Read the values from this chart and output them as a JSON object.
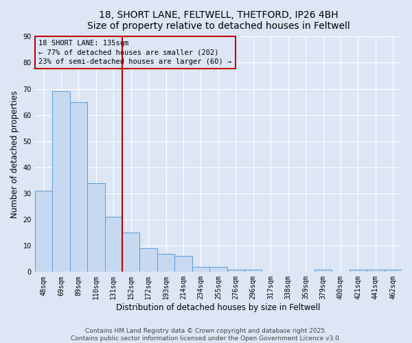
{
  "title_line1": "18, SHORT LANE, FELTWELL, THETFORD, IP26 4BH",
  "title_line2": "Size of property relative to detached houses in Feltwell",
  "xlabel": "Distribution of detached houses by size in Feltwell",
  "ylabel": "Number of detached properties",
  "categories": [
    "48sqm",
    "69sqm",
    "89sqm",
    "110sqm",
    "131sqm",
    "152sqm",
    "172sqm",
    "193sqm",
    "214sqm",
    "234sqm",
    "255sqm",
    "276sqm",
    "296sqm",
    "317sqm",
    "338sqm",
    "359sqm",
    "379sqm",
    "400sqm",
    "421sqm",
    "441sqm",
    "462sqm"
  ],
  "values": [
    31,
    69,
    65,
    34,
    21,
    15,
    9,
    7,
    6,
    2,
    2,
    1,
    1,
    0,
    0,
    0,
    1,
    0,
    1,
    1,
    1
  ],
  "bar_color": "#c6d9f1",
  "bar_edge_color": "#5b9bd5",
  "ref_line_x": 4.5,
  "ref_line_color": "#c00000",
  "ylim": [
    0,
    90
  ],
  "yticks": [
    0,
    10,
    20,
    30,
    40,
    50,
    60,
    70,
    80,
    90
  ],
  "annotation_box_text": "18 SHORT LANE: 135sqm\n← 77% of detached houses are smaller (202)\n23% of semi-detached houses are larger (60) →",
  "annotation_box_color": "#c00000",
  "footnote": "Contains HM Land Registry data © Crown copyright and database right 2025.\nContains public sector information licensed under the Open Government Licence v3.0.",
  "background_color": "#dce6f5",
  "grid_color": "#ffffff",
  "title_fontsize": 10,
  "axis_label_fontsize": 8.5,
  "tick_fontsize": 7,
  "annotation_fontsize": 7.5,
  "footnote_fontsize": 6.5
}
